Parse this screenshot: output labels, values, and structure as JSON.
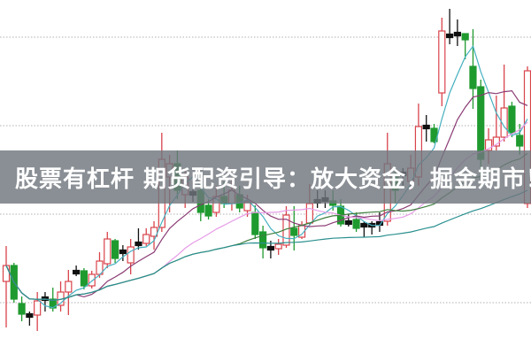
{
  "banner": {
    "title": "股票有杠杆 期货配资引导：放大资金，掘金期市！"
  },
  "chart_data": {
    "type": "candlestick",
    "title": "",
    "xlabel": "",
    "ylabel": "",
    "ylim": [
      0,
      40
    ],
    "grid": {
      "horizontal": true,
      "style": "dotted",
      "levels": [
        35.8,
        25.8,
        15.8,
        5.8
      ]
    },
    "colors": {
      "up": "#d9434b",
      "down": "#1f9a2f",
      "doji": "#111111",
      "grid": "#b0b0b0"
    },
    "moving_averages": [
      {
        "period": 5,
        "color": "#45b0c0"
      },
      {
        "period": 10,
        "color": "#8b3b74"
      },
      {
        "period": 20,
        "color": "#e69be6"
      },
      {
        "period": 30,
        "color": "#3e7f3e"
      },
      {
        "period": 60,
        "color": "#2a8f8f"
      }
    ],
    "candles": [
      [
        8.2,
        10.0,
        12.2,
        3.0
      ],
      [
        10.0,
        6.2,
        10.3,
        5.8
      ],
      [
        5.7,
        4.5,
        6.5,
        3.7
      ],
      [
        4.4,
        4.2,
        4.8,
        3.2
      ],
      [
        4.4,
        6.0,
        7.0,
        2.6
      ],
      [
        6.1,
        6.3,
        7.0,
        4.8
      ],
      [
        6.2,
        5.2,
        7.5,
        4.8
      ],
      [
        5.5,
        7.0,
        8.2,
        4.8
      ],
      [
        7.0,
        8.2,
        9.5,
        4.4
      ],
      [
        9.0,
        9.3,
        10.0,
        8.8
      ],
      [
        9.4,
        7.7,
        9.7,
        7.3
      ],
      [
        7.7,
        9.0,
        9.4,
        7.4
      ],
      [
        9.0,
        10.5,
        11.5,
        8.6
      ],
      [
        10.2,
        13.0,
        13.8,
        9.7
      ],
      [
        12.8,
        10.8,
        13.0,
        10.3
      ],
      [
        11.2,
        11.6,
        12.3,
        10.5
      ],
      [
        10.3,
        12.1,
        13.0,
        9.0
      ],
      [
        12.3,
        12.5,
        14.2,
        11.8
      ],
      [
        12.5,
        13.5,
        14.2,
        12.2
      ],
      [
        13.3,
        14.3,
        15.0,
        11.8
      ],
      [
        14.3,
        22.0,
        25.0,
        13.8
      ],
      [
        20.0,
        21.5,
        22.5,
        16.0
      ],
      [
        21.5,
        18.5,
        23.0,
        17.5
      ],
      [
        18.0,
        20.0,
        21.0,
        16.5
      ],
      [
        18.0,
        18.2,
        19.5,
        17.2
      ],
      [
        18.5,
        16.0,
        19.5,
        15.0
      ],
      [
        16.8,
        15.6,
        17.5,
        15.2
      ],
      [
        16.0,
        17.8,
        19.0,
        15.5
      ],
      [
        17.8,
        17.0,
        19.5,
        16.5
      ],
      [
        17.0,
        18.5,
        20.0,
        16.2
      ],
      [
        18.0,
        16.5,
        19.0,
        16.0
      ],
      [
        16.2,
        17.2,
        18.0,
        15.5
      ],
      [
        16.0,
        13.5,
        16.8,
        13.0
      ],
      [
        13.8,
        12.0,
        14.5,
        10.8
      ],
      [
        12.0,
        11.7,
        12.8,
        10.8
      ],
      [
        11.9,
        12.4,
        13.0,
        11.2
      ],
      [
        12.3,
        15.7,
        16.7,
        12.0
      ],
      [
        14.2,
        13.4,
        16.7,
        11.7
      ],
      [
        13.2,
        14.5,
        15.0,
        13.0
      ],
      [
        14.8,
        17.0,
        19.2,
        14.5
      ],
      [
        17.1,
        17.3,
        18.5,
        16.5
      ],
      [
        17.3,
        17.5,
        18.5,
        16.5
      ],
      [
        17.3,
        16.8,
        18.5,
        16.2
      ],
      [
        16.7,
        14.7,
        17.5,
        14.4
      ],
      [
        14.7,
        14.9,
        15.8,
        14.4
      ],
      [
        15.2,
        14.2,
        16.0,
        13.8
      ],
      [
        14.6,
        14.2,
        15.0,
        13.2
      ],
      [
        14.2,
        14.6,
        15.0,
        13.5
      ],
      [
        14.4,
        14.8,
        16.0,
        13.8
      ],
      [
        15.0,
        21.5,
        25.0,
        14.5
      ],
      [
        20.0,
        18.5,
        21.0,
        17.0
      ],
      [
        20.4,
        20.1,
        21.0,
        19.0
      ],
      [
        19.5,
        21.0,
        22.5,
        18.5
      ],
      [
        20.0,
        25.7,
        28.3,
        19.0
      ],
      [
        25.7,
        25.6,
        27.0,
        24.0
      ],
      [
        25.5,
        24.0,
        26.0,
        23.8
      ],
      [
        29.5,
        36.5,
        38.0,
        28.0
      ],
      [
        36.0,
        35.7,
        39.0,
        35.0
      ],
      [
        36.1,
        36.2,
        37.8,
        34.8
      ],
      [
        36.2,
        35.5,
        36.2,
        33.3
      ],
      [
        32.5,
        30.0,
        36.7,
        27.7
      ],
      [
        30.2,
        22.0,
        31.0,
        20.0
      ],
      [
        23.0,
        24.2,
        25.5,
        21.5
      ],
      [
        23.5,
        24.5,
        29.2,
        23.0
      ],
      [
        24.5,
        27.8,
        32.7,
        24.0
      ],
      [
        28.0,
        25.0,
        28.5,
        24.5
      ],
      [
        24.7,
        23.5,
        26.0,
        22.5
      ],
      [
        17.0,
        32.0,
        32.5,
        16.5
      ]
    ]
  }
}
